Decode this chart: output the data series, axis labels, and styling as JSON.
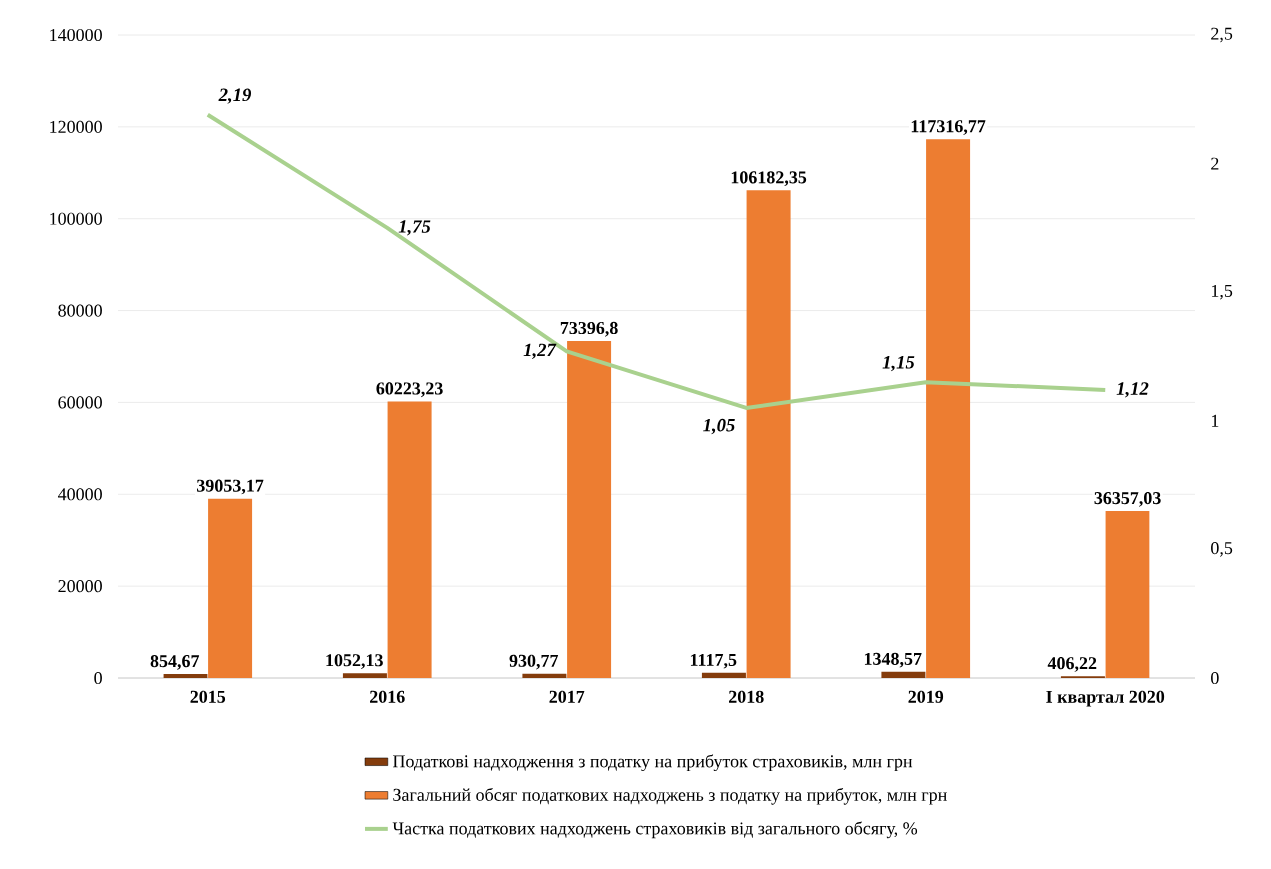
{
  "chart_data": {
    "type": "bar",
    "categories": [
      "2015",
      "2016",
      "2017",
      "2018",
      "2019",
      "I квартал 2020"
    ],
    "series": [
      {
        "name": "Податкові надходження  з податку на прибуток страховиків, млн грн",
        "color": "#843c0c",
        "values": [
          854.67,
          1052.13,
          930.77,
          1117.5,
          1348.57,
          406.22
        ],
        "value_labels": [
          "854,67",
          "1052,13",
          "930,77",
          "1117,5",
          "1348,57",
          "406,22"
        ]
      },
      {
        "name": "Загальний обсяг податкових надходжень  з податку на прибуток, млн грн",
        "color": "#ed7d31",
        "values": [
          39053.17,
          60223.23,
          73396.8,
          106182.35,
          117316.77,
          36357.03
        ],
        "value_labels": [
          "39053,17",
          "60223,23",
          "73396,8",
          "106182,35",
          "117316,77",
          "36357,03"
        ]
      },
      {
        "name": "Частка податкових надходжень  страховиків від загального обсягу, %",
        "type": "line",
        "axis": "y2",
        "color": "#a9d18e",
        "values": [
          2.19,
          1.75,
          1.27,
          1.05,
          1.15,
          1.12
        ],
        "value_labels": [
          "2,19",
          "1,75",
          "1,27",
          "1,05",
          "1,15",
          "1,12"
        ]
      }
    ],
    "ylim": [
      0,
      140000
    ],
    "yticks": [
      0,
      20000,
      40000,
      60000,
      80000,
      100000,
      120000,
      140000
    ],
    "y2lim": [
      0,
      2.5
    ],
    "y2ticks": [
      0,
      {
        "value": 0.5,
        "label": "0,5"
      },
      1,
      {
        "value": 1.5,
        "label": "1,5"
      },
      2,
      {
        "value": 2.5,
        "label": "2,5"
      }
    ],
    "grid": "y",
    "legend": "bottom",
    "marker": "none"
  }
}
